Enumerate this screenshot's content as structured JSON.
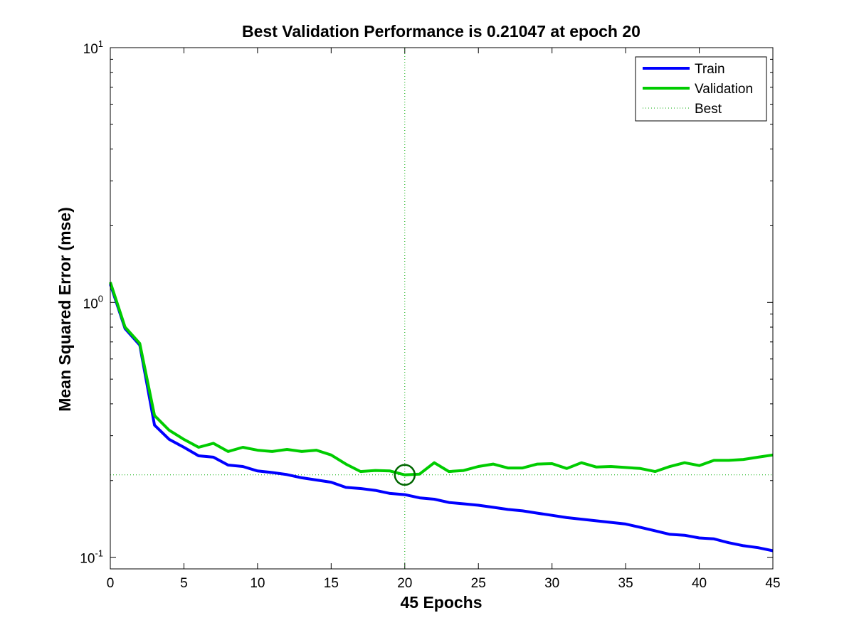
{
  "chart_data": {
    "type": "line",
    "title": "Best Validation Performance is 0.21047 at epoch 20",
    "xlabel": "45 Epochs",
    "ylabel": "Mean Squared Error  (mse)",
    "xlim": [
      0,
      45
    ],
    "ylim": [
      0.09,
      10
    ],
    "yscale": "log",
    "grid": false,
    "legend_position": "top-right",
    "x_ticks": [
      0,
      5,
      10,
      15,
      20,
      25,
      30,
      35,
      40,
      45
    ],
    "y_ticks": [
      {
        "value": 0.1,
        "base": "10",
        "exp": "-1"
      },
      {
        "value": 1,
        "base": "10",
        "exp": "0"
      },
      {
        "value": 10,
        "base": "10",
        "exp": "1"
      }
    ],
    "x": [
      0,
      1,
      2,
      3,
      4,
      5,
      6,
      7,
      8,
      9,
      10,
      11,
      12,
      13,
      14,
      15,
      16,
      17,
      18,
      19,
      20,
      21,
      22,
      23,
      24,
      25,
      26,
      27,
      28,
      29,
      30,
      31,
      32,
      33,
      34,
      35,
      36,
      37,
      38,
      39,
      40,
      41,
      42,
      43,
      44,
      45
    ],
    "series": [
      {
        "name": "Train",
        "color": "#0000ff",
        "values": [
          1.18,
          0.79,
          0.68,
          0.33,
          0.29,
          0.27,
          0.25,
          0.247,
          0.23,
          0.227,
          0.218,
          0.215,
          0.211,
          0.205,
          0.201,
          0.197,
          0.188,
          0.186,
          0.183,
          0.178,
          0.176,
          0.171,
          0.169,
          0.164,
          0.162,
          0.16,
          0.157,
          0.154,
          0.152,
          0.149,
          0.146,
          0.143,
          0.141,
          0.139,
          0.137,
          0.135,
          0.131,
          0.127,
          0.123,
          0.122,
          0.119,
          0.118,
          0.114,
          0.111,
          0.109,
          0.106
        ]
      },
      {
        "name": "Validation",
        "color": "#00cc00",
        "values": [
          1.2,
          0.8,
          0.69,
          0.36,
          0.315,
          0.29,
          0.27,
          0.28,
          0.26,
          0.27,
          0.263,
          0.26,
          0.265,
          0.26,
          0.263,
          0.252,
          0.232,
          0.217,
          0.219,
          0.218,
          0.21047,
          0.212,
          0.235,
          0.217,
          0.219,
          0.227,
          0.232,
          0.224,
          0.224,
          0.232,
          0.233,
          0.223,
          0.235,
          0.226,
          0.227,
          0.225,
          0.223,
          0.217,
          0.227,
          0.235,
          0.229,
          0.24,
          0.24,
          0.242,
          0.247,
          0.252
        ]
      }
    ],
    "best": {
      "name": "Best",
      "epoch": 20,
      "value": 0.21047,
      "color": "#00aa00",
      "marker_color": "#006600"
    }
  }
}
